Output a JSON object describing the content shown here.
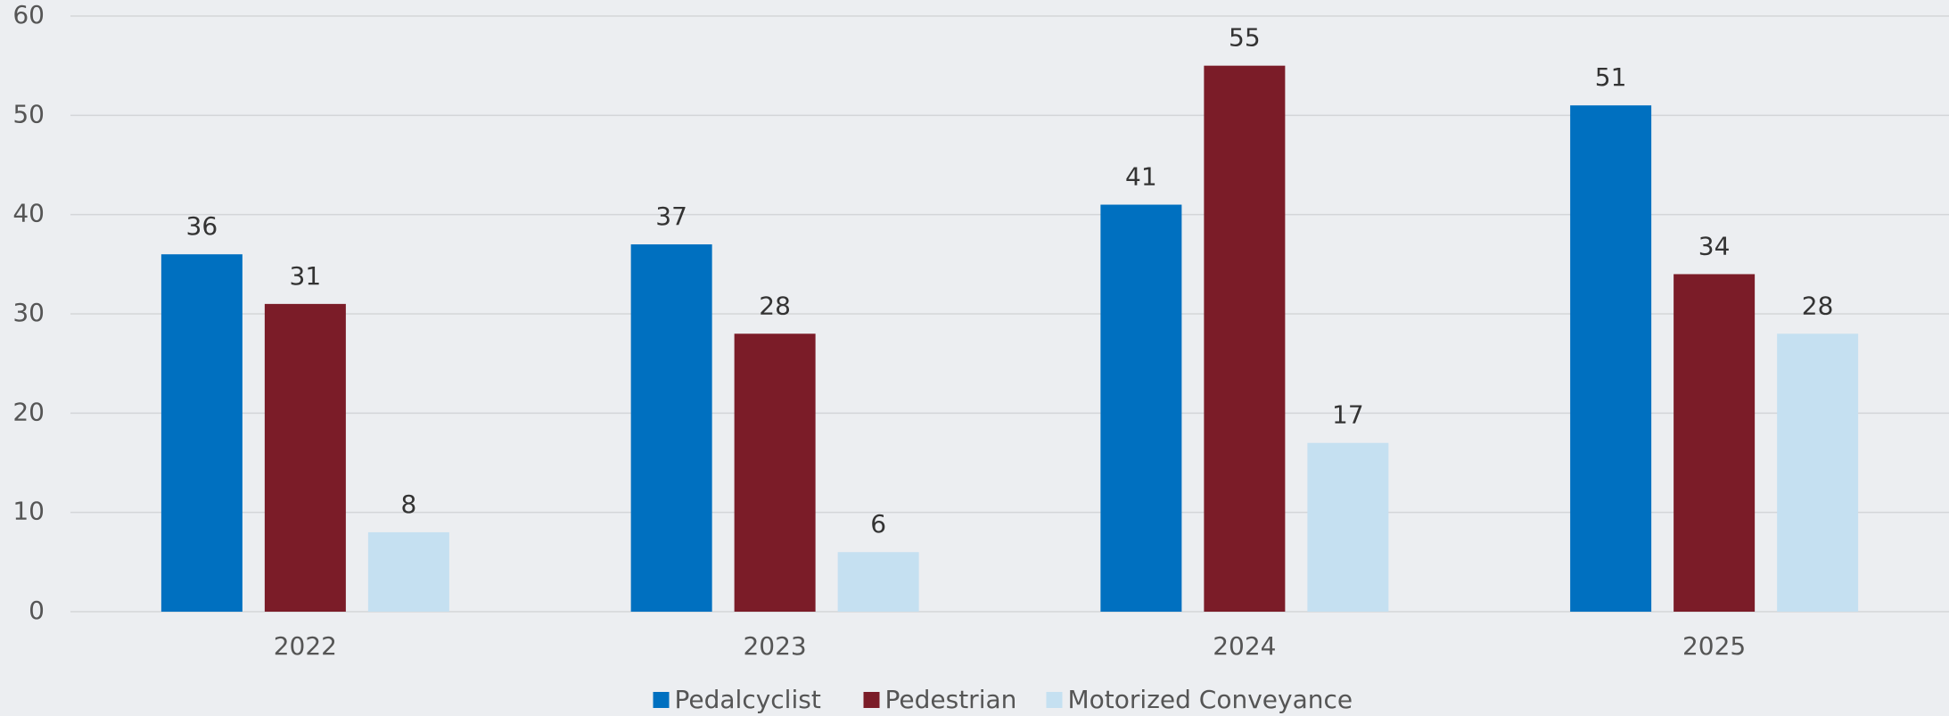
{
  "chart_data": {
    "type": "bar",
    "categories": [
      "2022",
      "2023",
      "2024",
      "2025"
    ],
    "series": [
      {
        "name": "Pedalcyclist",
        "color": "#0070c0",
        "values": [
          36,
          37,
          41,
          51
        ]
      },
      {
        "name": "Pedestrian",
        "color": "#7b1c28",
        "values": [
          31,
          28,
          55,
          34
        ]
      },
      {
        "name": "Motorized Conveyance",
        "color": "#c5e0f1",
        "values": [
          8,
          6,
          17,
          28
        ]
      }
    ],
    "ylim": [
      0,
      60
    ],
    "yticks": [
      0,
      10,
      20,
      30,
      40,
      50,
      60
    ],
    "grid": true,
    "legend": "bottom"
  }
}
